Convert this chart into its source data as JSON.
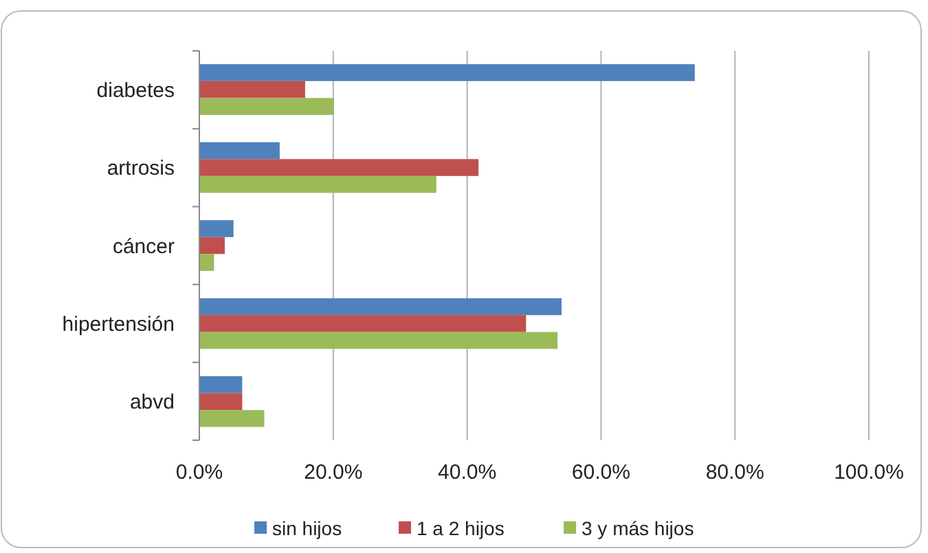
{
  "chart_data": {
    "type": "bar",
    "orientation": "horizontal",
    "categories": [
      "diabetes",
      "artrosis",
      "cáncer",
      "hipertensión",
      "abvd"
    ],
    "series": [
      {
        "name": "sin hijos",
        "color": "#4f81bd",
        "values": [
          74.0,
          12.0,
          5.1,
          54.1,
          6.4
        ]
      },
      {
        "name": "1 a 2 hijos",
        "color": "#c0504d",
        "values": [
          15.8,
          41.7,
          3.8,
          48.8,
          6.4
        ]
      },
      {
        "name": "3 y más hijos",
        "color": "#9bbb59",
        "values": [
          20.1,
          35.4,
          2.2,
          53.5,
          9.7
        ]
      }
    ],
    "xlim": [
      0,
      100
    ],
    "xticks": [
      {
        "value": 0,
        "label": "0.0%"
      },
      {
        "value": 20,
        "label": "20.0%"
      },
      {
        "value": 40,
        "label": "40.0%"
      },
      {
        "value": 60,
        "label": "60.0%"
      },
      {
        "value": 80,
        "label": "80.0%"
      },
      {
        "value": 100,
        "label": "100.0%"
      }
    ],
    "grid": "x",
    "legend": "bottom"
  }
}
